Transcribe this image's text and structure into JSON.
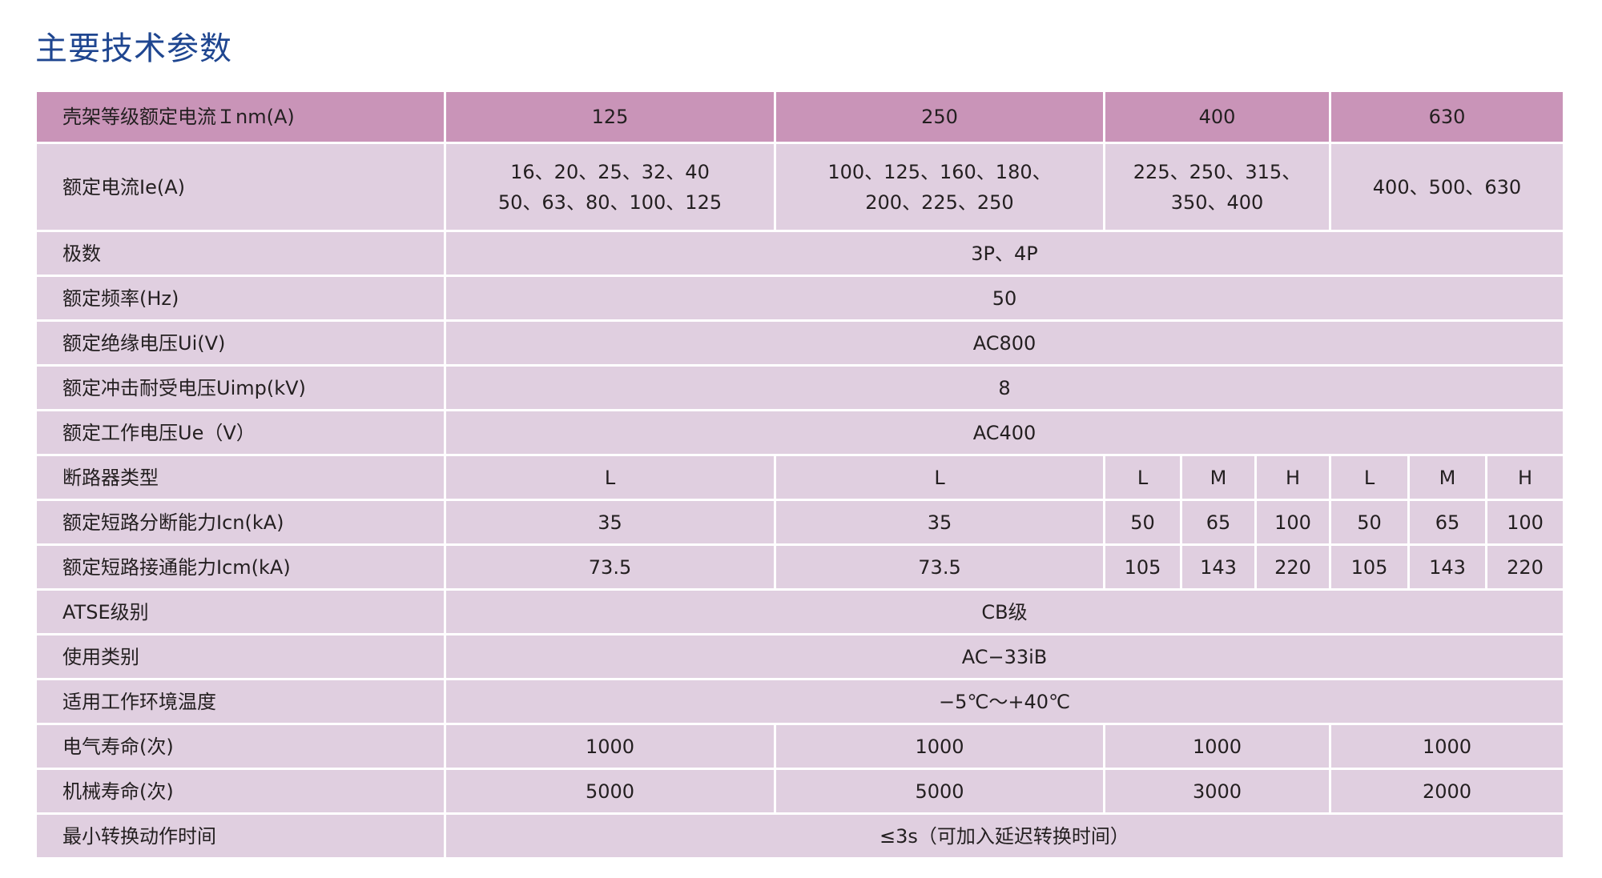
{
  "title": "主要技术参数",
  "colors": {
    "header_bg": "#c994b8",
    "body_bg": "#e0cfe0",
    "title": "#1f4690"
  },
  "header": {
    "label": "壳架等级额定电流Ｉnm(A)",
    "values": [
      "125",
      "250",
      "400",
      "630"
    ]
  },
  "rows": [
    {
      "label": "额定电流Ie(A)",
      "values": [
        "16、20、25、32、40\n50、63、80、100、125",
        "100、125、160、180、\n200、225、250",
        "225、250、315、\n350、400",
        "400、500、630"
      ]
    },
    {
      "label": "极数",
      "values": [
        "3P、4P"
      ]
    },
    {
      "label": "额定频率(Hz)",
      "values": [
        "50"
      ]
    },
    {
      "label": "额定绝缘电压Ui(V)",
      "values": [
        "AC800"
      ]
    },
    {
      "label": "额定冲击耐受电压Uimp(kV)",
      "values": [
        "8"
      ]
    },
    {
      "label": "额定工作电压Ue（V）",
      "values": [
        "AC400"
      ]
    },
    {
      "label": "断路器类型",
      "values": [
        "L",
        "L",
        "L",
        "M",
        "H",
        "L",
        "M",
        "H"
      ]
    },
    {
      "label": "额定短路分断能力Icn(kA)",
      "values": [
        "35",
        "35",
        "50",
        "65",
        "100",
        "50",
        "65",
        "100"
      ]
    },
    {
      "label": "额定短路接通能力Icm(kA)",
      "values": [
        "73.5",
        "73.5",
        "105",
        "143",
        "220",
        "105",
        "143",
        "220"
      ]
    },
    {
      "label": "ATSE级别",
      "values": [
        "CB级"
      ]
    },
    {
      "label": "使用类别",
      "values": [
        "AC−33iB"
      ]
    },
    {
      "label": "适用工作环境温度",
      "values": [
        "−5℃～+40℃"
      ]
    },
    {
      "label": "电气寿命(次)",
      "values": [
        "1000",
        "1000",
        "1000",
        "1000"
      ]
    },
    {
      "label": "机械寿命(次)",
      "values": [
        "5000",
        "5000",
        "3000",
        "2000"
      ]
    },
    {
      "label": "最小转换动作时间",
      "values": [
        "≤3s（可加入延迟转换时间）"
      ]
    }
  ]
}
